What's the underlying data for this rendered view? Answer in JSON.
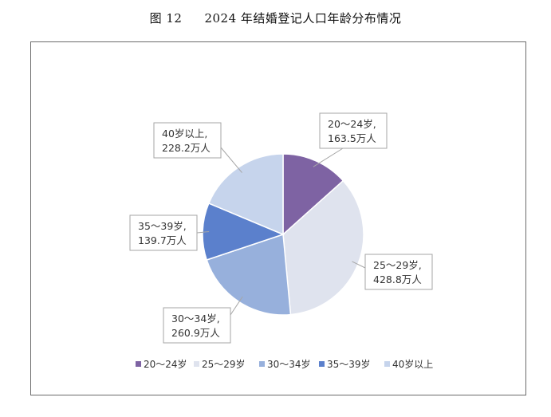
{
  "title": {
    "figure": "图 12",
    "text": "2024 年结婚登记人口年龄分布情况"
  },
  "chart_data": {
    "type": "pie",
    "unit": "万人",
    "slices": [
      {
        "category": "20～24岁",
        "value": 163.5,
        "label_line1": "20～24岁,",
        "label_line2": "163.5万人",
        "color": "#7e63a3"
      },
      {
        "category": "25～29岁",
        "value": 428.8,
        "label_line1": "25～29岁,",
        "label_line2": "428.8万人",
        "color": "#dfe3ee"
      },
      {
        "category": "30～34岁",
        "value": 260.9,
        "label_line1": "30～34岁,",
        "label_line2": "260.9万人",
        "color": "#97b0dc"
      },
      {
        "category": "35～39岁",
        "value": 139.7,
        "label_line1": "35～39岁,",
        "label_line2": "139.7万人",
        "color": "#5b80cc"
      },
      {
        "category": "40岁以上",
        "value": 228.2,
        "label_line1": "40岁以上,",
        "label_line2": "228.2万人",
        "color": "#c6d4ec"
      }
    ],
    "legend": [
      "20～24岁",
      "25～29岁",
      "30～34岁",
      "35～39岁",
      "40岁以上"
    ],
    "legend_position": "bottom"
  }
}
